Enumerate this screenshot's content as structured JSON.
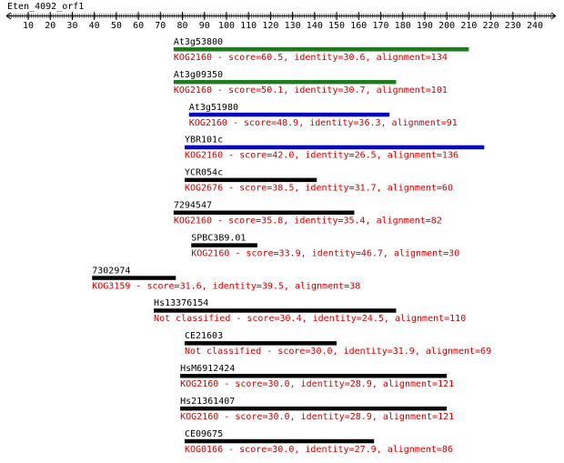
{
  "title": "Eten_4092_orf1",
  "ruler": {
    "xlim": [
      0,
      249
    ],
    "xticks": [
      10,
      20,
      30,
      40,
      50,
      60,
      70,
      80,
      90,
      100,
      110,
      120,
      130,
      140,
      150,
      160,
      170,
      180,
      190,
      200,
      210,
      220,
      230,
      240
    ]
  },
  "hits": [
    {
      "name": "At3g53800",
      "description": "KOG2160 - score=60.5, identity=30.6, alignment=134",
      "start": 76,
      "end": 210,
      "color": "#1f7a1f"
    },
    {
      "name": "At3g09350",
      "description": "KOG2160 - score=50.1, identity=30.7, alignment=101",
      "start": 76,
      "end": 177,
      "color": "#1f7a1f"
    },
    {
      "name": "At3g51980",
      "description": "KOG2160 - score=48.9, identity=36.3, alignment=91",
      "start": 83,
      "end": 174,
      "color": "#0000c0"
    },
    {
      "name": "YBR101c",
      "description": "KOG2160 - score=42.0, identity=26.5, alignment=136",
      "start": 81,
      "end": 217,
      "color": "#0000c0"
    },
    {
      "name": "YCR054c",
      "description": "KOG2676 - score=38.5, identity=31.7, alignment=60",
      "start": 81,
      "end": 141,
      "color": "#000000"
    },
    {
      "name": "7294547",
      "description": "KOG2160 - score=35.8, identity=35.4, alignment=82",
      "start": 76,
      "end": 158,
      "color": "#000000"
    },
    {
      "name": "SPBC3B9.01",
      "description": "KOG2160 - score=33.9, identity=46.7, alignment=30",
      "start": 84,
      "end": 114,
      "color": "#000000"
    },
    {
      "name": "7302974",
      "description": "KOG3159 - score=31.6, identity=39.5, alignment=38",
      "start": 39,
      "end": 77,
      "color": "#000000"
    },
    {
      "name": "Hs13376154",
      "description": "Not classified - score=30.4, identity=24.5, alignment=110",
      "start": 67,
      "end": 177,
      "color": "#000000"
    },
    {
      "name": "CE21603",
      "description": "Not classified - score=30.0, identity=31.9, alignment=69",
      "start": 81,
      "end": 150,
      "color": "#000000"
    },
    {
      "name": "HsM6912424",
      "description": "KOG2160 - score=30.0, identity=28.9, alignment=121",
      "start": 79,
      "end": 200,
      "color": "#000000"
    },
    {
      "name": "Hs21361407",
      "description": "KOG2160 - score=30.0, identity=28.9, alignment=121",
      "start": 79,
      "end": 200,
      "color": "#000000"
    },
    {
      "name": "CE09675",
      "description": "KOG0166 - score=30.0, identity=27.9, alignment=86",
      "start": 81,
      "end": 167,
      "color": "#000000"
    }
  ]
}
